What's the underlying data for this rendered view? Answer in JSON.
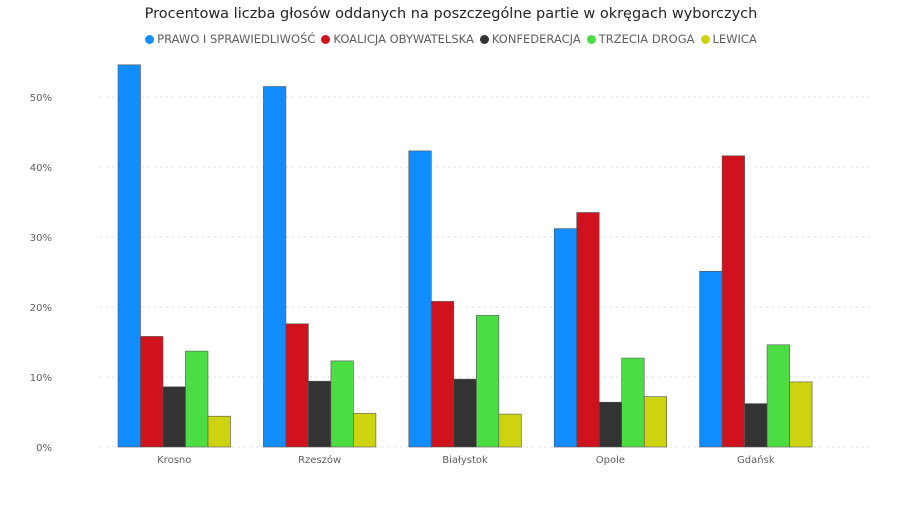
{
  "chart_data": {
    "type": "bar",
    "title": "Procentowa liczba głosów oddanych na poszczególne partie w okręgach wyborczych",
    "xlabel": "",
    "ylabel": "",
    "categories": [
      "Krosno",
      "Rzeszów",
      "Białystok",
      "Opole",
      "Gdańsk"
    ],
    "ylim": [
      0,
      55
    ],
    "yticks": [
      0,
      10,
      20,
      30,
      40,
      50
    ],
    "ytick_labels": [
      "0%",
      "10%",
      "20%",
      "30%",
      "40%",
      "50%"
    ],
    "grid": true,
    "legend_position": "top",
    "series": [
      {
        "name": "PRAWO I SPRAWIEDLIWOŚĆ",
        "color": "#118dff",
        "values": [
          54.6,
          51.5,
          42.3,
          31.2,
          25.1
        ]
      },
      {
        "name": "KOALICJA OBYWATELSKA",
        "color": "#d0111e",
        "values": [
          15.8,
          17.6,
          20.8,
          33.5,
          41.6
        ]
      },
      {
        "name": "KONFEDERACJA",
        "color": "#333333",
        "values": [
          8.6,
          9.4,
          9.7,
          6.4,
          6.2
        ]
      },
      {
        "name": "TRZECIA DROGA",
        "color": "#4cdd45",
        "values": [
          13.7,
          12.3,
          18.8,
          12.7,
          14.6
        ]
      },
      {
        "name": "LEWICA",
        "color": "#cdd40f",
        "values": [
          4.4,
          4.8,
          4.7,
          7.2,
          9.3
        ]
      }
    ]
  }
}
